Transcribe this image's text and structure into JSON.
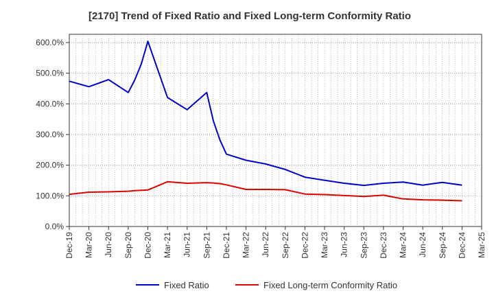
{
  "chart_data": {
    "type": "line",
    "title": "[2170]  Trend of Fixed Ratio and Fixed Long-term Conformity Ratio",
    "xlabel": "",
    "ylabel": "",
    "ylim": [
      0,
      600
    ],
    "ytick_values": [
      0,
      100,
      200,
      300,
      400,
      500,
      600
    ],
    "ytick_labels": [
      "0.0%",
      "100.0%",
      "200.0%",
      "300.0%",
      "400.0%",
      "500.0%",
      "600.0%"
    ],
    "xtick_labels": [
      "Dec-19",
      "Mar-20",
      "Jun-20",
      "Sep-20",
      "Dec-20",
      "Mar-21",
      "Jun-21",
      "Sep-21",
      "Dec-21",
      "Mar-22",
      "Jun-22",
      "Sep-22",
      "Dec-22",
      "Mar-23",
      "Jun-23",
      "Sep-23",
      "Dec-23",
      "Mar-24",
      "Jun-24",
      "Sep-24",
      "Dec-24",
      "Mar-25"
    ],
    "grid": true,
    "legend_position": "bottom",
    "x": [
      "Dec-19",
      "Mar-20",
      "Jun-20",
      "Sep-20",
      "Oct-20",
      "Nov-20",
      "Dec-20",
      "Mar-21",
      "Jun-21",
      "Sep-21",
      "Oct-21",
      "Nov-21",
      "Dec-21",
      "Mar-22",
      "Jun-22",
      "Sep-22",
      "Dec-22",
      "Mar-23",
      "Jun-23",
      "Sep-23",
      "Dec-23",
      "Mar-24",
      "Jun-24",
      "Sep-24",
      "Dec-24"
    ],
    "series": [
      {
        "name": "Fixed Ratio",
        "color": "#0000cc",
        "values": [
          474,
          456,
          479,
          437,
          478,
          530,
          604,
          421,
          381,
          437,
          345,
          283,
          236,
          216,
          204,
          186,
          161,
          151,
          141,
          134,
          141,
          145,
          135,
          144,
          135
        ]
      },
      {
        "name": "Fixed Long-term Conformity Ratio",
        "color": "#dd0000",
        "values": [
          105,
          112,
          113,
          115,
          117,
          118,
          119,
          146,
          141,
          143,
          142,
          140,
          136,
          121,
          121,
          120,
          106,
          104,
          101,
          98,
          102,
          90,
          87,
          86,
          84
        ]
      }
    ]
  }
}
